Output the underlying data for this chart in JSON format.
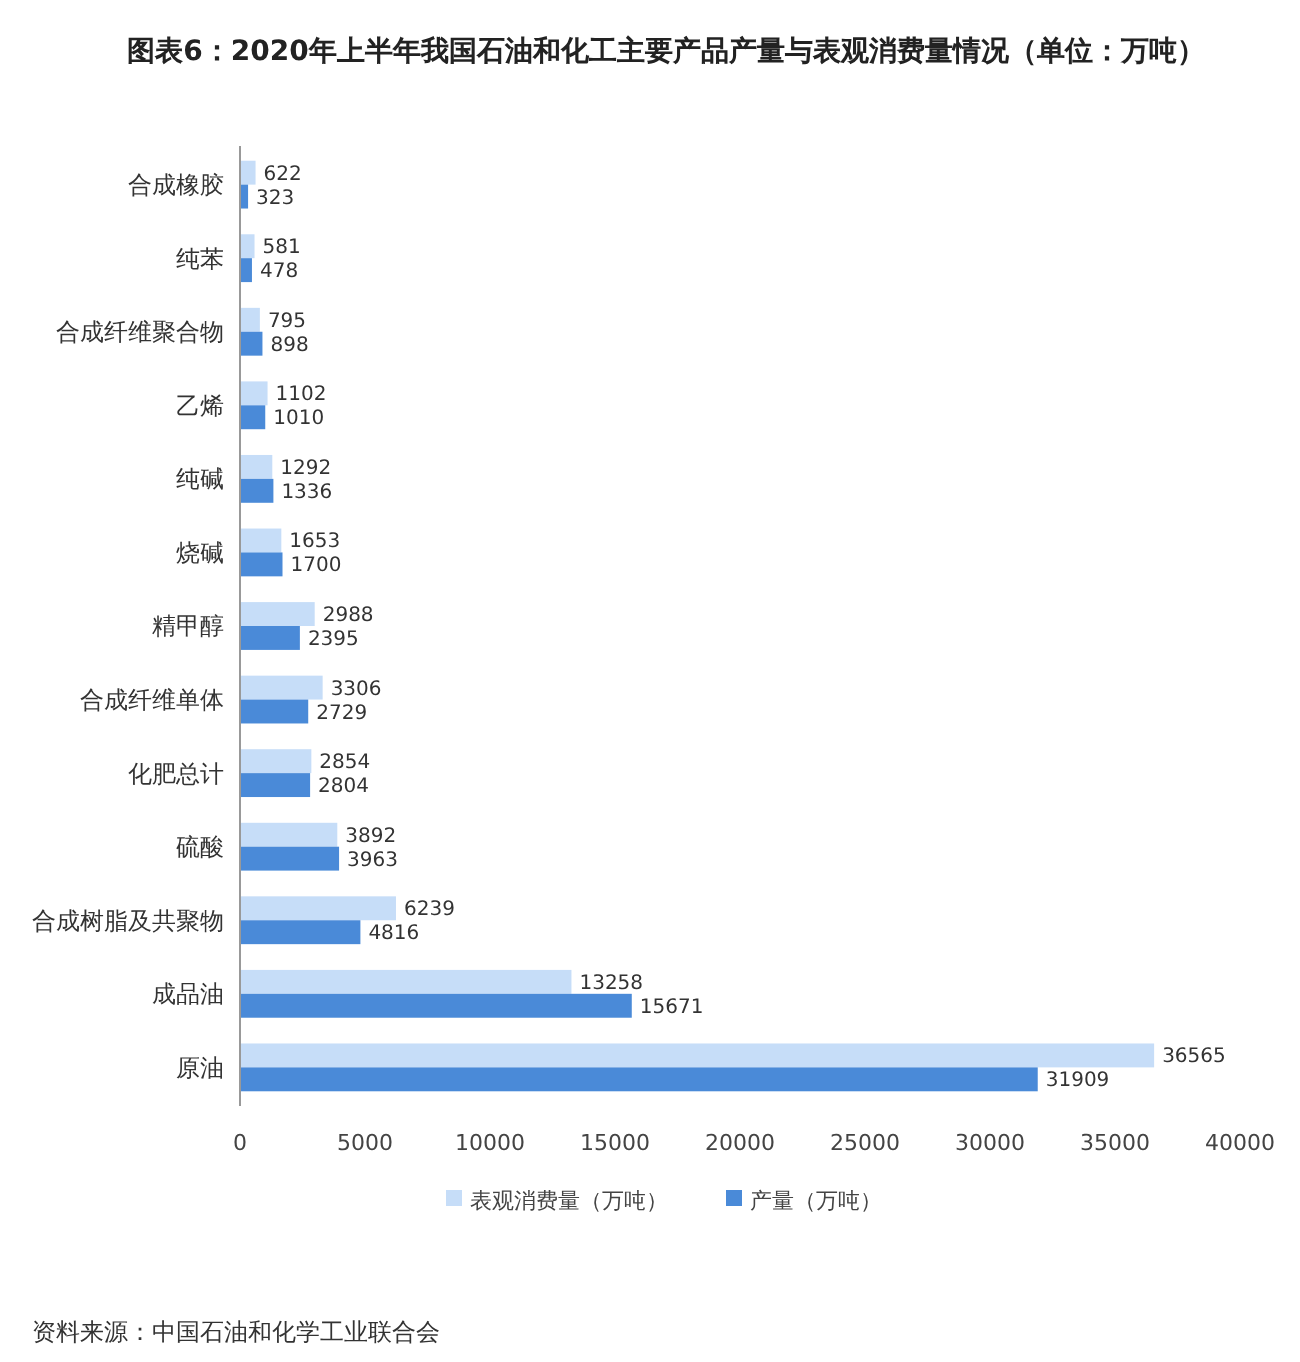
{
  "chart_data": {
    "type": "bar",
    "orientation": "horizontal",
    "title": "图表6：2020年上半年我国石油和化工主要产品产量与表观消费量情况（单位：万吨）",
    "categories": [
      "合成橡胶",
      "纯苯",
      "合成纤维聚合物",
      "乙烯",
      "纯碱",
      "烧碱",
      "精甲醇",
      "合成纤维单体",
      "化肥总计",
      "硫酸",
      "合成树脂及共聚物",
      "成品油",
      "原油"
    ],
    "series": [
      {
        "name": "表观消费量（万吨）",
        "color": "#c6ddf8",
        "values": [
          622,
          581,
          795,
          1102,
          1292,
          1653,
          2988,
          3306,
          2854,
          3892,
          6239,
          13258,
          36565
        ]
      },
      {
        "name": "产量（万吨）",
        "color": "#4a8ad8",
        "values": [
          323,
          478,
          898,
          1010,
          1336,
          1700,
          2395,
          2729,
          2804,
          3963,
          4816,
          15671,
          31909
        ]
      }
    ],
    "xlim": [
      0,
      40000
    ],
    "xticks": [
      0,
      5000,
      10000,
      15000,
      20000,
      25000,
      30000,
      35000,
      40000
    ],
    "grid": false,
    "legend": "bottom",
    "data_labels": true,
    "annotations": [
      "资料来源：中国石油和化学工业联合会"
    ]
  }
}
